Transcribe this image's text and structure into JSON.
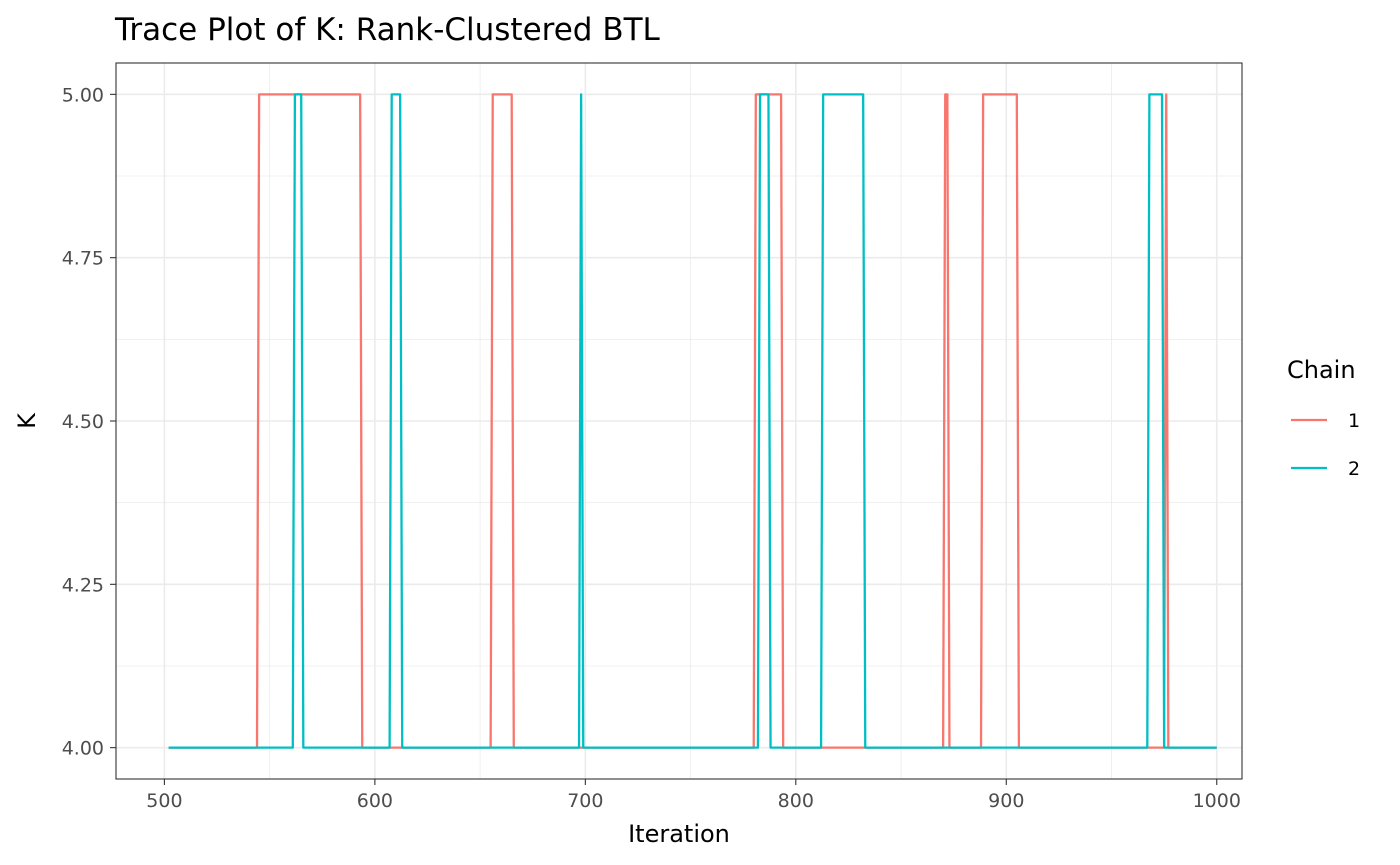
{
  "chart_data": {
    "type": "line",
    "title": "Trace Plot of K: Rank-Clustered BTL",
    "xlabel": "Iteration",
    "ylabel": "K",
    "xlim": [
      477,
      1012
    ],
    "ylim": [
      3.952,
      5.048
    ],
    "x_ticks": [
      500,
      600,
      700,
      800,
      900,
      1000
    ],
    "x_tick_labels": [
      "500",
      "600",
      "700",
      "800",
      "900",
      "1000"
    ],
    "y_ticks": [
      4.0,
      4.25,
      4.5,
      4.75,
      5.0
    ],
    "y_tick_labels": [
      "4.00",
      "4.25",
      "4.50",
      "4.75",
      "5.00"
    ],
    "grid": true,
    "legend": {
      "title": "Chain",
      "position": "right"
    },
    "series": [
      {
        "name": "1",
        "color": "#F8766D",
        "x": [
          502,
          544,
          545,
          593,
          594,
          655,
          656,
          665,
          666,
          780,
          781,
          793,
          794,
          870,
          871,
          872,
          873,
          888,
          889,
          905,
          906,
          975,
          976,
          977,
          1000
        ],
        "y": [
          4,
          4,
          5,
          5,
          4,
          4,
          5,
          5,
          4,
          4,
          5,
          5,
          4,
          4,
          5,
          5,
          4,
          4,
          5,
          5,
          4,
          4,
          5,
          4,
          4
        ]
      },
      {
        "name": "2",
        "color": "#00BFC4",
        "x": [
          502,
          561,
          562,
          565,
          566,
          607,
          608,
          612,
          613,
          697,
          698,
          699,
          782,
          783,
          787,
          788,
          812,
          813,
          832,
          833,
          967,
          968,
          974,
          975,
          1000
        ],
        "y": [
          4,
          4,
          5,
          5,
          4,
          4,
          5,
          5,
          4,
          4,
          5,
          4,
          4,
          5,
          5,
          4,
          4,
          5,
          5,
          4,
          4,
          5,
          5,
          4,
          4
        ]
      }
    ]
  }
}
